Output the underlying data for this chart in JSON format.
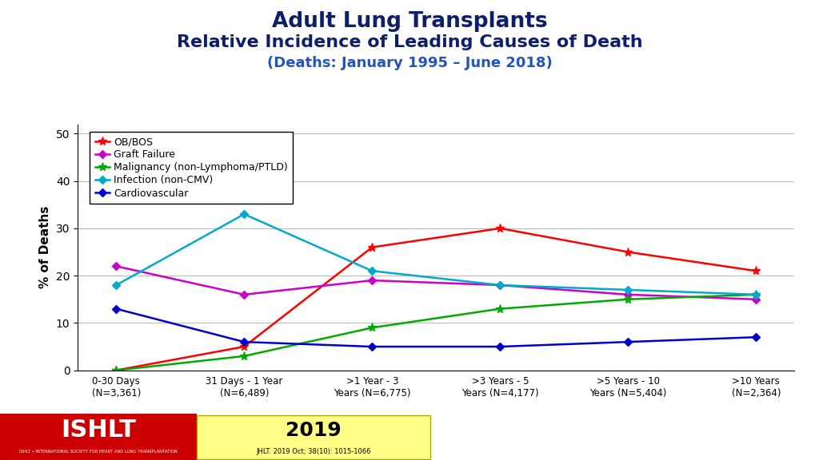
{
  "title_line1": "Adult Lung Transplants",
  "title_line2": "Relative Incidence of Leading Causes of Death",
  "title_line3": "(Deaths: January 1995 – June 2018)",
  "title_color": "#0d1f6b",
  "title3_color": "#2255bb",
  "xlabel_categories": [
    "0-30 Days\n(N=3,361)",
    "31 Days - 1 Year\n(N=6,489)",
    ">1 Year - 3\nYears (N=6,775)",
    ">3 Years - 5\nYears (N=4,177)",
    ">5 Years - 10\nYears (N=5,404)",
    ">10 Years\n(N=2,364)"
  ],
  "ylabel": "% of Deaths",
  "ylim": [
    0,
    52
  ],
  "yticks": [
    0,
    10,
    20,
    30,
    40,
    50
  ],
  "series": [
    {
      "label": "OB/BOS",
      "color": "#ff0000",
      "marker": "*",
      "markersize": 8,
      "values": [
        0,
        5,
        26,
        30,
        25,
        21
      ]
    },
    {
      "label": "Graft Failure",
      "color": "#cc00cc",
      "marker": "D",
      "markersize": 5,
      "values": [
        22,
        16,
        19,
        18,
        16,
        15
      ]
    },
    {
      "label": "Malignancy (non-Lymphoma/PTLD)",
      "color": "#00aa00",
      "marker": "*",
      "markersize": 8,
      "values": [
        0,
        3,
        9,
        13,
        15,
        16
      ]
    },
    {
      "label": "Infection (non-CMV)",
      "color": "#00aacc",
      "marker": "D",
      "markersize": 5,
      "values": [
        18,
        33,
        21,
        18,
        17,
        16
      ]
    },
    {
      "label": "Cardiovascular",
      "color": "#0000cc",
      "marker": "D",
      "markersize": 5,
      "values": [
        13,
        6,
        5,
        5,
        6,
        7
      ]
    }
  ],
  "background_color": "#ffffff",
  "grid_color": "#bbbbbb",
  "footer_year": "2019",
  "footer_journal": "JHLT. 2019 Oct; 38(10): 1015-1066",
  "ishlt_red": "#cc0000",
  "ishlt_text_color": "#ffffff"
}
